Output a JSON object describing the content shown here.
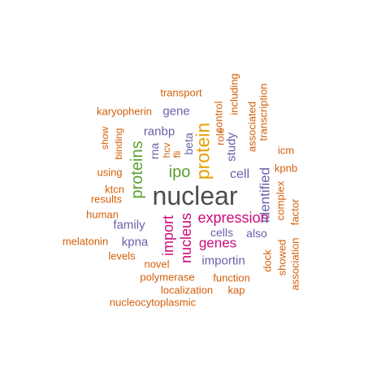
{
  "colors": {
    "gray": "#4d4d4d",
    "green": "#5aa02c",
    "gold": "#e6a100",
    "magenta": "#cc0a7a",
    "purple": "#6a5fa8",
    "orange": "#d35f0a"
  },
  "words": [
    {
      "text": "nuclear",
      "color": "gray"
    },
    {
      "text": "protein",
      "color": "gold"
    },
    {
      "text": "proteins",
      "color": "green"
    },
    {
      "text": "ipo",
      "color": "green"
    },
    {
      "text": "expression",
      "color": "magenta"
    },
    {
      "text": "import",
      "color": "magenta"
    },
    {
      "text": "nucleus",
      "color": "magenta"
    },
    {
      "text": "genes",
      "color": "magenta"
    },
    {
      "text": "identified",
      "color": "purple"
    },
    {
      "text": "cell",
      "color": "purple"
    },
    {
      "text": "study",
      "color": "purple"
    },
    {
      "text": "ranbp",
      "color": "purple"
    },
    {
      "text": "gene",
      "color": "purple"
    },
    {
      "text": "rna",
      "color": "purple"
    },
    {
      "text": "beta",
      "color": "purple"
    },
    {
      "text": "family",
      "color": "purple"
    },
    {
      "text": "kpna",
      "color": "purple"
    },
    {
      "text": "importin",
      "color": "purple"
    },
    {
      "text": "cells",
      "color": "purple"
    },
    {
      "text": "also",
      "color": "purple"
    },
    {
      "text": "transport",
      "color": "orange"
    },
    {
      "text": "karyopherin",
      "color": "orange"
    },
    {
      "text": "show",
      "color": "orange"
    },
    {
      "text": "binding",
      "color": "orange"
    },
    {
      "text": "hcv",
      "color": "orange"
    },
    {
      "text": "fli",
      "color": "orange"
    },
    {
      "text": "role",
      "color": "orange"
    },
    {
      "text": "control",
      "color": "orange"
    },
    {
      "text": "including",
      "color": "orange"
    },
    {
      "text": "associated",
      "color": "orange"
    },
    {
      "text": "transcription",
      "color": "orange"
    },
    {
      "text": "icm",
      "color": "orange"
    },
    {
      "text": "kpnb",
      "color": "orange"
    },
    {
      "text": "using",
      "color": "orange"
    },
    {
      "text": "ktcn",
      "color": "orange"
    },
    {
      "text": "results",
      "color": "orange"
    },
    {
      "text": "human",
      "color": "orange"
    },
    {
      "text": "melatonin",
      "color": "orange"
    },
    {
      "text": "levels",
      "color": "orange"
    },
    {
      "text": "novel",
      "color": "orange"
    },
    {
      "text": "polymerase",
      "color": "orange"
    },
    {
      "text": "function",
      "color": "orange"
    },
    {
      "text": "localization",
      "color": "orange"
    },
    {
      "text": "kap",
      "color": "orange"
    },
    {
      "text": "nucleocytoplasmic",
      "color": "orange"
    },
    {
      "text": "dock",
      "color": "orange"
    },
    {
      "text": "showed",
      "color": "orange"
    },
    {
      "text": "complex",
      "color": "orange"
    },
    {
      "text": "association",
      "color": "orange"
    },
    {
      "text": "factor",
      "color": "orange"
    }
  ]
}
